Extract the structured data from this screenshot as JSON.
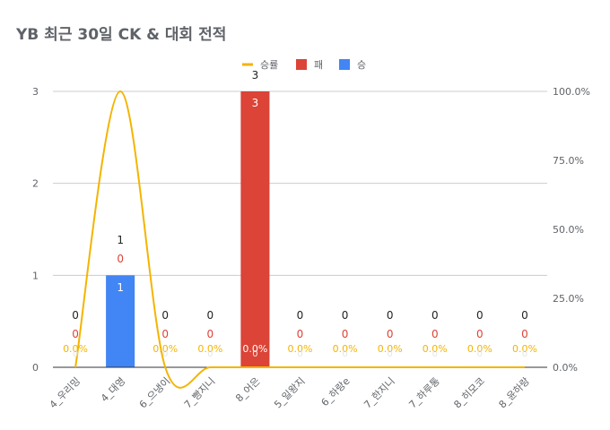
{
  "chart_data": {
    "type": "bar",
    "title": "YB 최근 30일 CK & 대회 전적",
    "categories": [
      "4_우리밍",
      "4_대영",
      "6_으냉이",
      "7_빵지니",
      "8_어은",
      "5_일왕지",
      "6_하랑e",
      "7_한지니",
      "7_하루통",
      "8_히모코",
      "8_윤하랑"
    ],
    "series": [
      {
        "name": "승",
        "type": "bar",
        "axis": "left",
        "values": [
          0,
          1,
          0,
          0,
          0,
          0,
          0,
          0,
          0,
          0,
          0
        ],
        "color": "#4285f4"
      },
      {
        "name": "패",
        "type": "bar",
        "axis": "left",
        "values": [
          0,
          0,
          0,
          0,
          3,
          0,
          0,
          0,
          0,
          0,
          0
        ],
        "color": "#db4437"
      },
      {
        "name": "승률",
        "type": "line",
        "axis": "right",
        "values": [
          0,
          100,
          0,
          0,
          0,
          0,
          0,
          0,
          0,
          0,
          0
        ],
        "color": "#f4b400"
      }
    ],
    "data_labels": {
      "totals": [
        "0",
        "1",
        "0",
        "0",
        "3",
        "0",
        "0",
        "0",
        "0",
        "0",
        "0"
      ],
      "win": [
        "0",
        "1",
        "0",
        "0",
        "0",
        "0",
        "0",
        "0",
        "0",
        "0",
        "0"
      ],
      "loss": [
        "0",
        "0",
        "0",
        "0",
        "3",
        "0",
        "0",
        "0",
        "0",
        "0",
        "0"
      ],
      "rate": [
        "0.0%",
        "100.0%",
        "0.0%",
        "0.0%",
        "0.0%",
        "0.0%",
        "0.0%",
        "0.0%",
        "0.0%",
        "0.0%",
        "0.0%"
      ]
    },
    "y_left": {
      "min": 0,
      "max": 3,
      "ticks": [
        "0",
        "1",
        "2",
        "3"
      ]
    },
    "y_right": {
      "min": 0,
      "max": 100,
      "ticks": [
        "0.0%",
        "25.0%",
        "50.0%",
        "75.0%",
        "100.0%"
      ]
    },
    "legend": {
      "position": "top",
      "entries": [
        "승률",
        "패",
        "승"
      ]
    },
    "grid": true
  },
  "colors": {
    "axis_text": "#5f6368",
    "grid": "#cccccc",
    "baseline": "#333333"
  }
}
